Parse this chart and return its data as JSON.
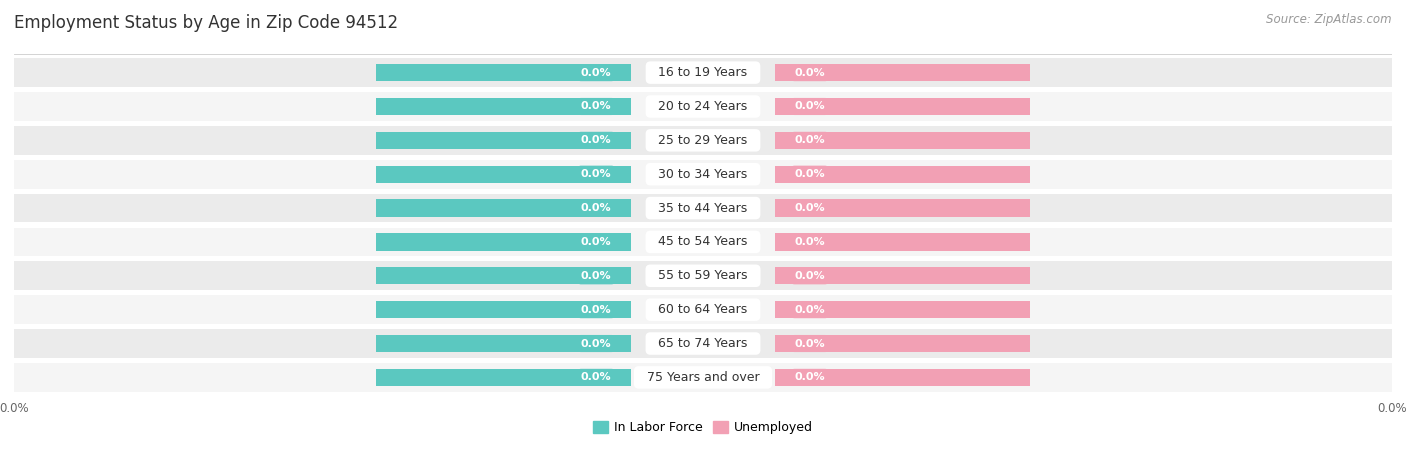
{
  "title": "Employment Status by Age in Zip Code 94512",
  "source_text": "Source: ZipAtlas.com",
  "age_groups": [
    "16 to 19 Years",
    "20 to 24 Years",
    "25 to 29 Years",
    "30 to 34 Years",
    "35 to 44 Years",
    "45 to 54 Years",
    "55 to 59 Years",
    "60 to 64 Years",
    "65 to 74 Years",
    "75 Years and over"
  ],
  "labor_force_values": [
    0.0,
    0.0,
    0.0,
    0.0,
    0.0,
    0.0,
    0.0,
    0.0,
    0.0,
    0.0
  ],
  "unemployed_values": [
    0.0,
    0.0,
    0.0,
    0.0,
    0.0,
    0.0,
    0.0,
    0.0,
    0.0,
    0.0
  ],
  "labor_force_color": "#5BC8C0",
  "unemployed_color": "#F2A0B4",
  "row_bg_colors": [
    "#EBEBEB",
    "#F5F5F5"
  ],
  "title_color": "#333333",
  "source_color": "#999999",
  "tick_label_color": "#666666",
  "cat_label_color": "#333333",
  "val_label_color": "#FFFFFF",
  "legend_labor_force": "In Labor Force",
  "legend_unemployed": "Unemployed",
  "title_fontsize": 12,
  "source_fontsize": 8.5,
  "tick_fontsize": 8.5,
  "val_fontsize": 8,
  "cat_fontsize": 9,
  "legend_fontsize": 9,
  "figsize": [
    14.06,
    4.5
  ],
  "dpi": 100
}
